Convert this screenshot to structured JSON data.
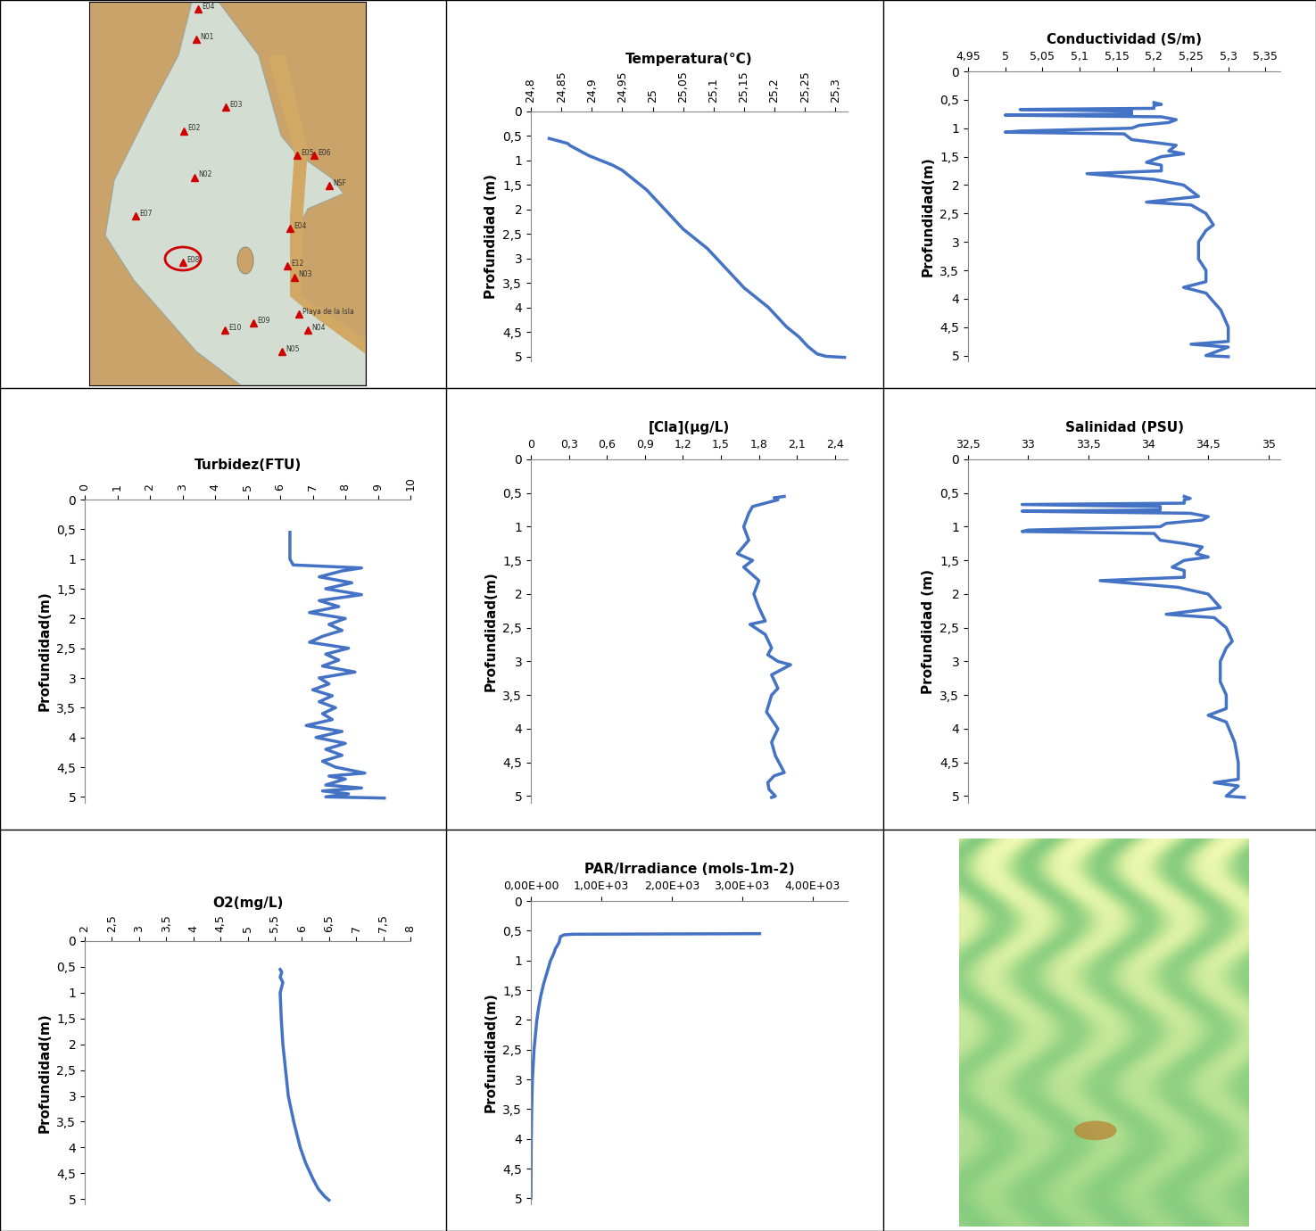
{
  "map": {
    "xlim": [
      100,
      410
    ],
    "ylim": [
      430,
      0
    ],
    "tick_labels": false,
    "highlight": "E08",
    "stations": [
      {
        "label": "E04",
        "x": 222,
        "y": 8
      },
      {
        "label": "N01",
        "x": 220,
        "y": 42
      },
      {
        "label": "E03",
        "x": 253,
        "y": 118
      },
      {
        "label": "E02",
        "x": 206,
        "y": 145
      },
      {
        "label": "N02",
        "x": 218,
        "y": 197
      },
      {
        "label": "E05",
        "x": 333,
        "y": 172
      },
      {
        "label": "E06",
        "x": 352,
        "y": 172
      },
      {
        "label": "NSF",
        "x": 369,
        "y": 206
      },
      {
        "label": "E07",
        "x": 152,
        "y": 240
      },
      {
        "label": "E04",
        "x": 325,
        "y": 254
      },
      {
        "label": "E08",
        "x": 205,
        "y": 292
      },
      {
        "label": "E12",
        "x": 322,
        "y": 296
      },
      {
        "label": "N03",
        "x": 330,
        "y": 309
      },
      {
        "label": "E10",
        "x": 252,
        "y": 368
      },
      {
        "label": "E09",
        "x": 284,
        "y": 360
      },
      {
        "label": "Playa de la Isla",
        "x": 335,
        "y": 350
      },
      {
        "label": "N04",
        "x": 345,
        "y": 368
      },
      {
        "label": "N05",
        "x": 316,
        "y": 392
      }
    ]
  },
  "chart_data": [
    {
      "type": "line",
      "title": "Temperatura(°C)",
      "y_label": "Profundidad (m)",
      "color": "#4472c4",
      "xlim": [
        24.8,
        25.32
      ],
      "ylim": [
        5.1,
        0
      ],
      "xticks": [
        {
          "value": 24.8,
          "label": "24,8"
        },
        {
          "value": 24.85,
          "label": "24,85"
        },
        {
          "value": 24.9,
          "label": "24,9"
        },
        {
          "value": 24.95,
          "label": "24,95"
        },
        25,
        {
          "value": 25.05,
          "label": "25,05"
        },
        {
          "value": 25.1,
          "label": "25,1"
        },
        {
          "value": 25.15,
          "label": "25,15"
        },
        {
          "value": 25.2,
          "label": "25,2"
        },
        {
          "value": 25.25,
          "label": "25,25"
        },
        {
          "value": 25.3,
          "label": "25,3"
        }
      ],
      "yticks": [
        0,
        {
          "value": 0.5,
          "label": "0,5"
        },
        1,
        {
          "value": 1.5,
          "label": "1,5"
        },
        2,
        {
          "value": 2.5,
          "label": "2,5"
        },
        3,
        {
          "value": 3.5,
          "label": "3,5"
        },
        4,
        {
          "value": 4.5,
          "label": "4,5"
        },
        5
      ],
      "y": [
        0.55,
        0.6,
        0.65,
        0.7,
        0.8,
        0.9,
        1.0,
        1.1,
        1.2,
        1.3,
        1.4,
        1.6,
        1.8,
        2.0,
        2.2,
        2.4,
        2.6,
        2.8,
        3.0,
        3.2,
        3.4,
        3.6,
        3.8,
        4.0,
        4.2,
        4.4,
        4.6,
        4.8,
        4.95,
        5.0,
        5.02
      ],
      "x": [
        24.83,
        24.845,
        24.86,
        24.865,
        24.88,
        24.895,
        24.915,
        24.935,
        24.95,
        24.96,
        24.97,
        24.99,
        25.005,
        25.02,
        25.035,
        25.05,
        25.07,
        25.09,
        25.105,
        25.12,
        25.135,
        25.15,
        25.17,
        25.19,
        25.205,
        25.22,
        25.24,
        25.255,
        25.27,
        25.285,
        25.315
      ]
    },
    {
      "type": "line",
      "title": "Conductividad (S/m)",
      "y_label": "Profundidad(m)",
      "color": "#4472c4",
      "xlim": [
        4.95,
        5.37
      ],
      "ylim": [
        5.1,
        0
      ],
      "xticks": [
        {
          "value": 4.95,
          "label": "4,95"
        },
        5,
        {
          "value": 5.05,
          "label": "5,05"
        },
        {
          "value": 5.1,
          "label": "5,1"
        },
        {
          "value": 5.15,
          "label": "5,15"
        },
        {
          "value": 5.2,
          "label": "5,2"
        },
        {
          "value": 5.25,
          "label": "5,25"
        },
        {
          "value": 5.3,
          "label": "5,3"
        },
        {
          "value": 5.35,
          "label": "5,35"
        }
      ],
      "yticks": [
        0,
        {
          "value": 0.5,
          "label": "0,5"
        },
        1,
        {
          "value": 1.5,
          "label": "1,5"
        },
        2,
        {
          "value": 2.5,
          "label": "2,5"
        },
        3,
        {
          "value": 3.5,
          "label": "3,5"
        },
        4,
        {
          "value": 4.5,
          "label": "4,5"
        },
        5
      ],
      "y": [
        0.55,
        0.58,
        0.6,
        0.65,
        0.67,
        0.7,
        0.75,
        0.77,
        0.8,
        0.85,
        0.9,
        0.95,
        1.0,
        1.05,
        1.07,
        1.1,
        1.2,
        1.25,
        1.3,
        1.4,
        1.45,
        1.5,
        1.6,
        1.65,
        1.75,
        1.8,
        1.9,
        2.0,
        2.1,
        2.2,
        2.3,
        2.35,
        2.5,
        2.7,
        2.8,
        3.0,
        3.3,
        3.5,
        3.7,
        3.8,
        3.9,
        4.2,
        4.5,
        4.75,
        4.8,
        4.85,
        5.0,
        5.02
      ],
      "x": [
        5.2,
        5.21,
        5.2,
        5.2,
        5.02,
        5.17,
        5.17,
        5.0,
        5.21,
        5.23,
        5.22,
        5.18,
        5.17,
        5.02,
        5.0,
        5.16,
        5.17,
        5.2,
        5.23,
        5.22,
        5.24,
        5.21,
        5.19,
        5.21,
        5.21,
        5.11,
        5.2,
        5.24,
        5.25,
        5.26,
        5.19,
        5.25,
        5.27,
        5.28,
        5.27,
        5.26,
        5.26,
        5.27,
        5.27,
        5.24,
        5.27,
        5.29,
        5.3,
        5.3,
        5.25,
        5.3,
        5.27,
        5.3
      ]
    },
    {
      "type": "line",
      "title": "Turbidez(FTU)",
      "y_label": "Profundidad(m)",
      "color": "#4472c4",
      "xlim": [
        0,
        10
      ],
      "ylim": [
        5.1,
        0
      ],
      "xticks": [
        0,
        1,
        2,
        3,
        4,
        5,
        6,
        7,
        8,
        9,
        10
      ],
      "yticks": [
        0,
        {
          "value": 0.5,
          "label": "0,5"
        },
        1,
        {
          "value": 1.5,
          "label": "1,5"
        },
        2,
        {
          "value": 2.5,
          "label": "2,5"
        },
        3,
        {
          "value": 3.5,
          "label": "3,5"
        },
        4,
        {
          "value": 4.5,
          "label": "4,5"
        },
        5
      ],
      "y": [
        0.55,
        1.0,
        1.1,
        1.15,
        1.2,
        1.3,
        1.4,
        1.5,
        1.6,
        1.7,
        1.8,
        1.9,
        2.0,
        2.1,
        2.2,
        2.3,
        2.4,
        2.5,
        2.6,
        2.7,
        2.8,
        2.9,
        3.0,
        3.1,
        3.2,
        3.3,
        3.4,
        3.5,
        3.6,
        3.7,
        3.8,
        3.9,
        4.0,
        4.1,
        4.2,
        4.3,
        4.4,
        4.5,
        4.6,
        4.65,
        4.7,
        4.8,
        4.85,
        4.9,
        4.95,
        5.0,
        5.02
      ],
      "x": [
        6.3,
        6.3,
        6.4,
        8.5,
        7.9,
        7.2,
        8.2,
        7.4,
        8.5,
        7.2,
        7.8,
        6.9,
        8.0,
        7.5,
        7.9,
        7.3,
        6.9,
        8.1,
        7.4,
        7.8,
        7.3,
        8.3,
        7.2,
        7.5,
        7.0,
        7.6,
        7.2,
        7.7,
        7.3,
        7.6,
        6.8,
        7.9,
        7.1,
        8.0,
        7.4,
        7.9,
        7.3,
        7.7,
        8.6,
        7.5,
        8.0,
        7.4,
        8.5,
        7.3,
        8.1,
        7.4,
        9.2
      ]
    },
    {
      "type": "line",
      "title": "[Cla](μg/L)",
      "y_label": "Profundidad(m)",
      "color": "#4472c4",
      "xlim": [
        0,
        2.5
      ],
      "ylim": [
        5.1,
        0
      ],
      "xticks": [
        0,
        {
          "value": 0.3,
          "label": "0,3"
        },
        {
          "value": 0.6,
          "label": "0,6"
        },
        {
          "value": 0.9,
          "label": "0,9"
        },
        {
          "value": 1.2,
          "label": "1,2"
        },
        {
          "value": 1.5,
          "label": "1,5"
        },
        {
          "value": 1.8,
          "label": "1,8"
        },
        {
          "value": 2.1,
          "label": "2,1"
        },
        {
          "value": 2.4,
          "label": "2,4"
        }
      ],
      "yticks": [
        0,
        {
          "value": 0.5,
          "label": "0,5"
        },
        1,
        {
          "value": 1.5,
          "label": "1,5"
        },
        2,
        {
          "value": 2.5,
          "label": "2,5"
        },
        3,
        {
          "value": 3.5,
          "label": "3,5"
        },
        4,
        {
          "value": 4.5,
          "label": "4,5"
        },
        5
      ],
      "y": [
        0.55,
        0.57,
        0.6,
        0.7,
        0.8,
        1.0,
        1.2,
        1.4,
        1.5,
        1.6,
        1.8,
        2.0,
        2.2,
        2.4,
        2.45,
        2.6,
        2.8,
        2.9,
        3.0,
        3.05,
        3.2,
        3.4,
        3.5,
        3.75,
        4.0,
        4.2,
        4.4,
        4.65,
        4.7,
        4.8,
        4.9,
        5.0,
        5.02
      ],
      "x": [
        2.0,
        1.92,
        1.95,
        1.75,
        1.72,
        1.68,
        1.72,
        1.63,
        1.75,
        1.68,
        1.8,
        1.76,
        1.8,
        1.85,
        1.73,
        1.85,
        1.9,
        1.87,
        1.95,
        2.05,
        1.9,
        1.95,
        1.9,
        1.86,
        1.95,
        1.9,
        1.93,
        2.0,
        1.92,
        1.87,
        1.88,
        1.93,
        1.9
      ]
    },
    {
      "type": "line",
      "title": "Salinidad (PSU)",
      "y_label": "Profundidad (m)",
      "color": "#4472c4",
      "xlim": [
        32.5,
        35.1
      ],
      "ylim": [
        5.1,
        0
      ],
      "xticks": [
        {
          "value": 32.5,
          "label": "32,5"
        },
        33,
        {
          "value": 33.5,
          "label": "33,5"
        },
        34,
        {
          "value": 34.5,
          "label": "34,5"
        },
        35
      ],
      "yticks": [
        0,
        {
          "value": 0.5,
          "label": "0,5"
        },
        1,
        {
          "value": 1.5,
          "label": "1,5"
        },
        2,
        {
          "value": 2.5,
          "label": "2,5"
        },
        3,
        {
          "value": 3.5,
          "label": "3,5"
        },
        4,
        {
          "value": 4.5,
          "label": "4,5"
        },
        5
      ],
      "y": [
        0.55,
        0.58,
        0.6,
        0.65,
        0.67,
        0.7,
        0.75,
        0.77,
        0.8,
        0.85,
        0.9,
        0.95,
        1.0,
        1.05,
        1.07,
        1.1,
        1.2,
        1.25,
        1.3,
        1.4,
        1.45,
        1.5,
        1.6,
        1.65,
        1.75,
        1.8,
        1.9,
        2.0,
        2.1,
        2.2,
        2.3,
        2.35,
        2.5,
        2.7,
        2.8,
        3.0,
        3.3,
        3.5,
        3.7,
        3.8,
        3.9,
        4.2,
        4.5,
        4.75,
        4.8,
        4.85,
        5.0,
        5.02
      ],
      "x": [
        34.3,
        34.35,
        34.3,
        34.3,
        32.95,
        34.1,
        34.1,
        32.95,
        34.35,
        34.5,
        34.45,
        34.15,
        34.1,
        33.0,
        32.95,
        34.05,
        34.1,
        34.3,
        34.45,
        34.4,
        34.5,
        34.3,
        34.2,
        34.3,
        34.3,
        33.6,
        34.25,
        34.5,
        34.55,
        34.6,
        34.15,
        34.55,
        34.65,
        34.7,
        34.65,
        34.6,
        34.6,
        34.65,
        34.65,
        34.5,
        34.65,
        34.72,
        34.75,
        34.75,
        34.55,
        34.75,
        34.65,
        34.8
      ]
    },
    {
      "type": "line",
      "title": "O2(mg/L)",
      "y_label": "Profundidad(m)",
      "color": "#4472c4",
      "xlim": [
        2,
        8
      ],
      "ylim": [
        5.1,
        0
      ],
      "xticks": [
        2,
        {
          "value": 2.5,
          "label": "2,5"
        },
        3,
        {
          "value": 3.5,
          "label": "3,5"
        },
        4,
        {
          "value": 4.5,
          "label": "4,5"
        },
        5,
        {
          "value": 5.5,
          "label": "5,5"
        },
        6,
        {
          "value": 6.5,
          "label": "6,5"
        },
        7,
        {
          "value": 7.5,
          "label": "7,5"
        },
        8
      ],
      "yticks": [
        0,
        {
          "value": 0.5,
          "label": "0,5"
        },
        1,
        {
          "value": 1.5,
          "label": "1,5"
        },
        2,
        {
          "value": 2.5,
          "label": "2,5"
        },
        3,
        {
          "value": 3.5,
          "label": "3,5"
        },
        4,
        {
          "value": 4.5,
          "label": "4,5"
        },
        5
      ],
      "y": [
        0.55,
        0.6,
        0.7,
        0.8,
        1.0,
        1.5,
        2.0,
        2.5,
        3.0,
        3.5,
        4.0,
        4.3,
        4.6,
        4.8,
        4.95,
        5.02
      ],
      "x": [
        5.6,
        5.63,
        5.6,
        5.65,
        5.6,
        5.62,
        5.65,
        5.7,
        5.75,
        5.85,
        5.97,
        6.07,
        6.2,
        6.3,
        6.42,
        6.5
      ]
    },
    {
      "type": "line",
      "title": "PAR/Irradiance (mols-1m-2)",
      "y_label": "Profundidad(m)",
      "color": "#4472c4",
      "xlim": [
        0,
        4500
      ],
      "ylim": [
        5.1,
        0
      ],
      "xticks": [
        {
          "value": 0,
          "label": "0,00E+00"
        },
        {
          "value": 1000,
          "label": "1,00E+03"
        },
        {
          "value": 2000,
          "label": "2,00E+03"
        },
        {
          "value": 3000,
          "label": "3,00E+03"
        },
        {
          "value": 4000,
          "label": "4,00E+03"
        }
      ],
      "yticks": [
        0,
        {
          "value": 0.5,
          "label": "0,5"
        },
        1,
        {
          "value": 1.5,
          "label": "1,5"
        },
        2,
        {
          "value": 2.5,
          "label": "2,5"
        },
        3,
        {
          "value": 3.5,
          "label": "3,5"
        },
        4,
        {
          "value": 4.5,
          "label": "4,5"
        },
        5
      ],
      "y": [
        0.55,
        0.56,
        0.57,
        0.6,
        0.7,
        0.8,
        0.9,
        1.0,
        1.2,
        1.4,
        1.6,
        1.8,
        2.0,
        2.5,
        3.0,
        3.5,
        4.0,
        4.5,
        5.0
      ],
      "x": [
        3250,
        600,
        470,
        420,
        400,
        350,
        320,
        280,
        230,
        180,
        140,
        110,
        85,
        45,
        22,
        12,
        6,
        3,
        1
      ]
    }
  ]
}
